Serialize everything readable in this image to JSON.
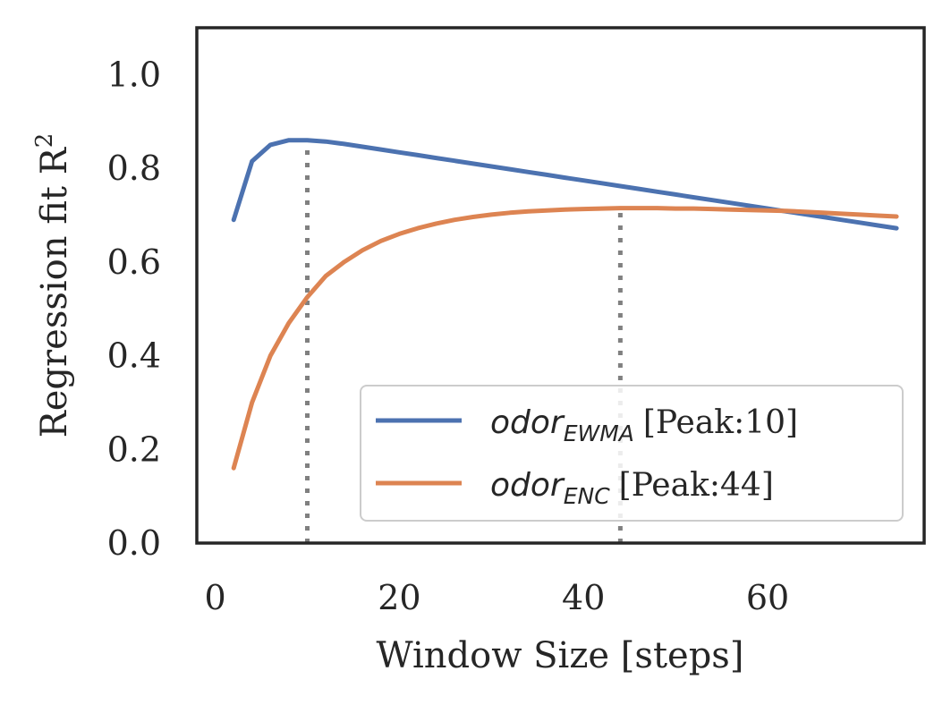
{
  "chart_data": {
    "type": "line",
    "title": "",
    "xlabel": "Window Size [steps]",
    "ylabel": "Regression fit R",
    "ylabel_superscript": "2",
    "xlim": [
      -2,
      77
    ],
    "ylim": [
      0.0,
      1.1
    ],
    "xticks": [
      0,
      20,
      40,
      60
    ],
    "xtick_labels": [
      "0",
      "20",
      "40",
      "60"
    ],
    "yticks": [
      0.0,
      0.2,
      0.4,
      0.6,
      0.8,
      1.0
    ],
    "ytick_labels": [
      "0.0",
      "0.2",
      "0.4",
      "0.6",
      "0.8",
      "1.0"
    ],
    "grid": false,
    "legend_position": "lower-right",
    "series": [
      {
        "name": "odor_EWMA",
        "legend_base": "odor",
        "legend_sub": "EWMA",
        "legend_suffix": "[Peak:10]",
        "color": "#4c72b0",
        "peak": 10,
        "x": [
          2,
          4,
          6,
          8,
          10,
          12,
          14,
          16,
          18,
          20,
          22,
          24,
          26,
          28,
          30,
          32,
          34,
          36,
          38,
          40,
          42,
          44,
          46,
          48,
          50,
          52,
          54,
          56,
          58,
          60,
          62,
          64,
          66,
          68,
          70,
          72,
          74
        ],
        "values": [
          0.69,
          0.815,
          0.85,
          0.86,
          0.86,
          0.857,
          0.852,
          0.846,
          0.84,
          0.834,
          0.828,
          0.822,
          0.816,
          0.81,
          0.804,
          0.798,
          0.792,
          0.786,
          0.78,
          0.774,
          0.768,
          0.762,
          0.756,
          0.75,
          0.744,
          0.738,
          0.732,
          0.726,
          0.72,
          0.714,
          0.708,
          0.702,
          0.696,
          0.69,
          0.684,
          0.678,
          0.672
        ]
      },
      {
        "name": "odor_ENC",
        "legend_base": "odor",
        "legend_sub": "ENC",
        "legend_suffix": "[Peak:44]",
        "color": "#dd8452",
        "peak": 44,
        "x": [
          2,
          4,
          6,
          8,
          10,
          12,
          14,
          16,
          18,
          20,
          22,
          24,
          26,
          28,
          30,
          32,
          34,
          36,
          38,
          40,
          42,
          44,
          46,
          48,
          50,
          52,
          54,
          56,
          58,
          60,
          62,
          64,
          66,
          68,
          70,
          72,
          74
        ],
        "values": [
          0.16,
          0.3,
          0.4,
          0.47,
          0.525,
          0.57,
          0.6,
          0.625,
          0.645,
          0.66,
          0.672,
          0.682,
          0.69,
          0.696,
          0.701,
          0.705,
          0.708,
          0.71,
          0.712,
          0.713,
          0.714,
          0.715,
          0.715,
          0.715,
          0.714,
          0.714,
          0.713,
          0.712,
          0.711,
          0.71,
          0.709,
          0.707,
          0.705,
          0.703,
          0.701,
          0.699,
          0.697
        ]
      }
    ],
    "peak_marker_color": "#808080"
  }
}
